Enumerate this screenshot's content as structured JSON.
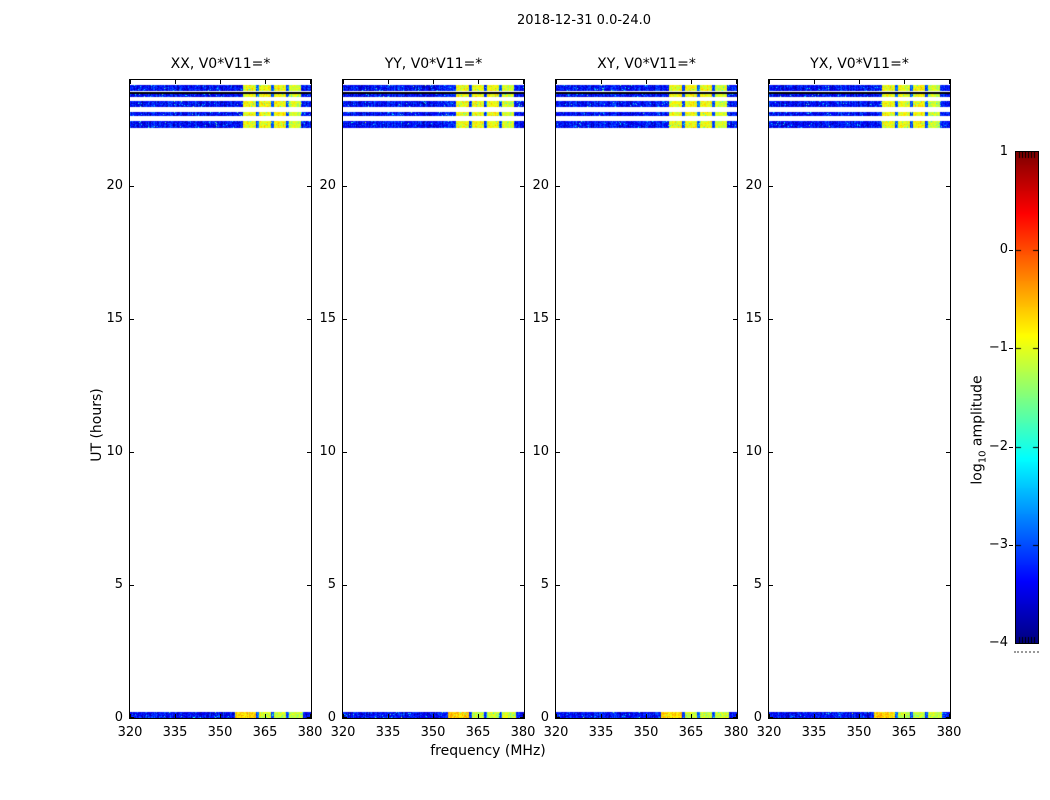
{
  "background": "#ffffff",
  "chart_data": {
    "type": "heatmap",
    "title": "2018-12-31 0.0-24.0",
    "xlabel": "frequency (MHz)",
    "ylabel": "UT (hours)",
    "xlim": [
      320,
      380
    ],
    "ylim": [
      0,
      24
    ],
    "x_ticks": [
      320,
      335,
      350,
      365,
      380
    ],
    "x_tick_labels": [
      "320",
      "335",
      "350",
      "365",
      "380"
    ],
    "y_ticks": [
      0,
      5,
      10,
      15,
      20
    ],
    "y_tick_labels": [
      "0",
      "5",
      "10",
      "15",
      "20"
    ],
    "grid": false,
    "colormap": "jet",
    "colors": {
      "frame": "#000000",
      "background": "#ffffff",
      "black_line": "#000005",
      "low_band_blue": "#0010a8",
      "high_band_yellow": "#d8e030"
    },
    "colorbar": {
      "label_prefix": "log",
      "label_sub": "10",
      "label_suffix": " amplitude",
      "vmin": -4,
      "vmax": 1,
      "tick_values": [
        1,
        0,
        -1,
        -2,
        -3,
        -4
      ],
      "tick_labels": [
        "1",
        "0",
        "−1",
        "−2",
        "−3",
        "−4"
      ],
      "inner_dash_values": [
        0,
        -1,
        -2,
        -3
      ]
    },
    "panels": [
      {
        "title": "XX, V0*V11=*",
        "seed": 101
      },
      {
        "title": "YY, V0*V11=*",
        "seed": 202
      },
      {
        "title": "XY, V0*V11=*",
        "seed": 303
      },
      {
        "title": "YX, V0*V11=*",
        "seed": 404
      }
    ],
    "stripes": [
      {
        "ut": [
          23.57,
          23.8
        ],
        "kind": "data",
        "variant": "default"
      },
      {
        "ut": [
          23.49,
          23.56
        ],
        "kind": "black"
      },
      {
        "ut": [
          23.35,
          23.47
        ],
        "kind": "data",
        "variant": "default"
      },
      {
        "ut": [
          22.97,
          23.22
        ],
        "kind": "data",
        "variant": "default"
      },
      {
        "ut": [
          22.65,
          22.8
        ],
        "kind": "data",
        "variant": "default"
      },
      {
        "ut": [
          22.19,
          22.45
        ],
        "kind": "data",
        "variant": "default"
      },
      {
        "ut": [
          0.0,
          0.22
        ],
        "kind": "data",
        "variant": "bottom"
      }
    ],
    "segments": {
      "default": [
        {
          "f": [
            320.0,
            357.5
          ],
          "v": [
            -3.7,
            -3.0
          ]
        },
        {
          "f": [
            357.5,
            362.0
          ],
          "v": [
            -1.3,
            -0.6
          ]
        },
        {
          "f": [
            362.0,
            362.9
          ],
          "v": [
            -3.3,
            -2.7
          ]
        },
        {
          "f": [
            362.9,
            367.0
          ],
          "v": [
            -1.3,
            -0.6
          ]
        },
        {
          "f": [
            367.0,
            367.9
          ],
          "v": [
            -3.3,
            -2.7
          ]
        },
        {
          "f": [
            367.9,
            372.0
          ],
          "v": [
            -1.2,
            -0.6
          ]
        },
        {
          "f": [
            372.0,
            372.9
          ],
          "v": [
            -3.3,
            -2.7
          ]
        },
        {
          "f": [
            372.9,
            377.0
          ],
          "v": [
            -1.4,
            -0.8
          ]
        },
        {
          "f": [
            377.0,
            380.0
          ],
          "v": [
            -3.7,
            -3.0
          ]
        }
      ],
      "bottom": [
        {
          "f": [
            320.0,
            355.0
          ],
          "v": [
            -3.7,
            -3.0
          ]
        },
        {
          "f": [
            355.0,
            362.0
          ],
          "v": [
            -0.9,
            -0.4
          ]
        },
        {
          "f": [
            362.0,
            362.9
          ],
          "v": [
            -3.3,
            -2.7
          ]
        },
        {
          "f": [
            362.9,
            367.0
          ],
          "v": [
            -1.5,
            -0.8
          ]
        },
        {
          "f": [
            367.0,
            367.9
          ],
          "v": [
            -3.3,
            -2.7
          ]
        },
        {
          "f": [
            367.9,
            372.0
          ],
          "v": [
            -1.5,
            -0.8
          ]
        },
        {
          "f": [
            372.0,
            372.9
          ],
          "v": [
            -3.3,
            -2.7
          ]
        },
        {
          "f": [
            372.9,
            377.5
          ],
          "v": [
            -1.5,
            -0.8
          ]
        },
        {
          "f": [
            377.5,
            380.0
          ],
          "v": [
            -3.7,
            -3.0
          ]
        }
      ]
    },
    "noise": {
      "speckle_prob": 0.03,
      "speckle_boost": [
        0.5,
        1.7
      ],
      "column_jitter": 0.5
    }
  }
}
